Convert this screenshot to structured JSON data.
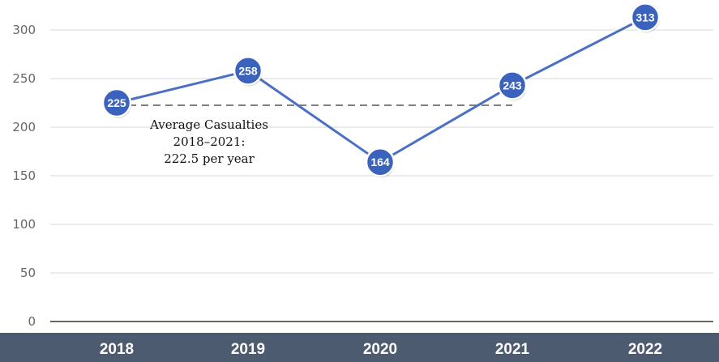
{
  "chart_data": {
    "type": "line",
    "title": "",
    "xlabel": "",
    "ylabel": "",
    "categories": [
      "2018",
      "2019",
      "2020",
      "2021",
      "2022"
    ],
    "series": [
      {
        "values": [
          225,
          258,
          164,
          243,
          313
        ]
      }
    ],
    "data_labels": [
      "225",
      "258",
      "164",
      "243",
      "313"
    ],
    "ylim": [
      0,
      300
    ],
    "yticks": [
      0,
      50,
      100,
      150,
      200,
      250,
      300
    ],
    "grid": true,
    "average_line": {
      "value": 222.5,
      "from_category": "2018",
      "to_category": "2021",
      "style": "dashed"
    },
    "annotation": {
      "lines": [
        "Average Casualties",
        "2018–2021:",
        "222.5 per year"
      ]
    },
    "colors": {
      "line": "#4a6fc4",
      "marker_fill": "#3b62bd",
      "marker_stroke": "#ffffff",
      "category_band": "#4d5b70",
      "grid": "#d9d9d9",
      "average_line": "#555555"
    }
  }
}
